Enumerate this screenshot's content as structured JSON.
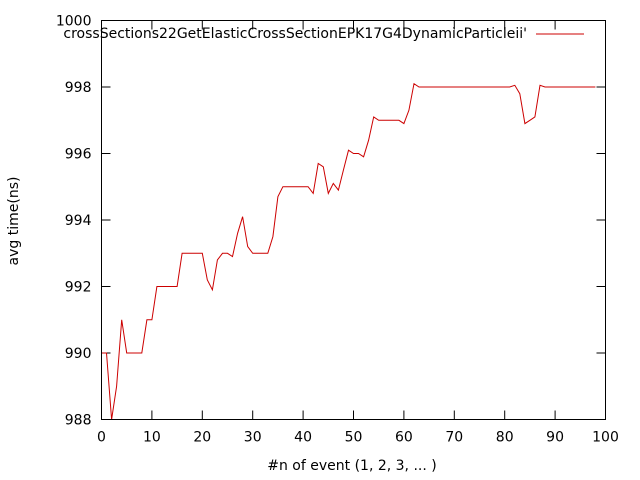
{
  "chart_data": {
    "type": "line",
    "title": "",
    "xlabel": "#n of event (1, 2, 3, ... )",
    "ylabel": "avg time(ns)",
    "xlim": [
      0,
      100
    ],
    "ylim": [
      988,
      1000
    ],
    "xticks": [
      0,
      10,
      20,
      30,
      40,
      50,
      60,
      70,
      80,
      90,
      100
    ],
    "yticks": [
      988,
      990,
      992,
      994,
      996,
      998,
      1000
    ],
    "grid": false,
    "legend_position": "top-right",
    "series": [
      {
        "name": "crossSections22GetElasticCrossSectionEPK17G4DynamicParticleii'",
        "color": "#cc0000",
        "x": [
          0,
          1,
          2,
          3,
          4,
          5,
          6,
          7,
          8,
          9,
          10,
          11,
          12,
          13,
          14,
          15,
          16,
          17,
          18,
          19,
          20,
          21,
          22,
          23,
          24,
          25,
          26,
          27,
          28,
          29,
          30,
          31,
          32,
          33,
          34,
          35,
          36,
          37,
          38,
          39,
          40,
          41,
          42,
          43,
          44,
          45,
          46,
          47,
          48,
          49,
          50,
          51,
          52,
          53,
          54,
          55,
          56,
          57,
          58,
          59,
          60,
          61,
          62,
          63,
          64,
          65,
          66,
          67,
          68,
          69,
          70,
          71,
          72,
          73,
          74,
          75,
          76,
          77,
          78,
          79,
          80,
          81,
          82,
          83,
          84,
          85,
          86,
          87,
          88,
          89,
          90,
          91,
          92,
          93,
          94,
          95,
          96,
          97,
          98
        ],
        "y": [
          990,
          990,
          988,
          989,
          991,
          990,
          990,
          990,
          990,
          991,
          991,
          992,
          992,
          992,
          992,
          992,
          993,
          993,
          993,
          993,
          993,
          992.2,
          991.9,
          992.8,
          993,
          993,
          992.9,
          993.6,
          994.1,
          993.2,
          993,
          993,
          993,
          993,
          993.5,
          994.7,
          995,
          995,
          995,
          995,
          995,
          995,
          994.8,
          995.7,
          995.6,
          994.8,
          995.1,
          994.9,
          995.5,
          996.1,
          996,
          996,
          995.9,
          996.4,
          997.1,
          997,
          997,
          997,
          997,
          997,
          996.9,
          997.3,
          998.1,
          998,
          998,
          998,
          998,
          998,
          998,
          998,
          998,
          998,
          998,
          998,
          998,
          998,
          998,
          998,
          998,
          998,
          998,
          998,
          998.05,
          997.8,
          996.9,
          997,
          997.1,
          998.05,
          998,
          998,
          998,
          998,
          998,
          998,
          998,
          998,
          998,
          998,
          998
        ]
      }
    ]
  }
}
